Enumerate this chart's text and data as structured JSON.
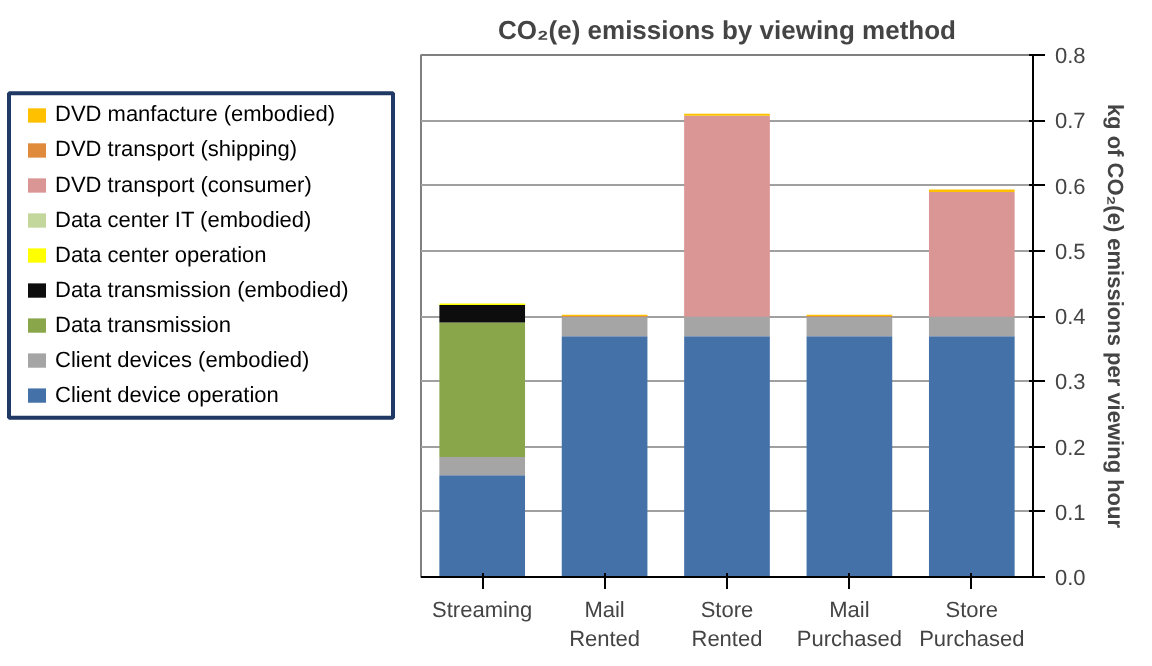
{
  "chart_data": {
    "type": "bar",
    "stacked": true,
    "title": "CO₂(e) emissions by viewing method",
    "ylabel": "kg of CO₂(e) emissions per viewing hour",
    "categories": [
      "Streaming",
      "Mail Rented",
      "Store Rented",
      "Mail Purchased",
      "Store Purchased"
    ],
    "series": [
      {
        "name": "Client device operation",
        "color": "#4472a8",
        "values": [
          0.156,
          0.369,
          0.369,
          0.369,
          0.369
        ]
      },
      {
        "name": "Client devices (embodied)",
        "color": "#a5a5a5",
        "values": [
          0.028,
          0.03,
          0.03,
          0.03,
          0.03
        ]
      },
      {
        "name": "Data transmission",
        "color": "#8aa64a",
        "values": [
          0.206,
          0,
          0,
          0,
          0
        ]
      },
      {
        "name": "Data transmission (embodied)",
        "color": "#0d0d0d",
        "values": [
          0.027,
          0,
          0,
          0,
          0
        ]
      },
      {
        "name": "Data center operation",
        "color": "#ffff00",
        "values": [
          0.002,
          0,
          0,
          0,
          0
        ]
      },
      {
        "name": "Data center IT (embodied)",
        "color": "#c3d69b",
        "values": [
          0,
          0,
          0,
          0,
          0
        ]
      },
      {
        "name": "DVD transport  (consumer)",
        "color": "#d99694",
        "values": [
          0,
          0,
          0.308,
          0,
          0.191
        ]
      },
      {
        "name": "DVD transport (shipping)",
        "color": "#e08a3c",
        "values": [
          0,
          0.001,
          0,
          0.001,
          0
        ]
      },
      {
        "name": "DVD manfacture (embodied)",
        "color": "#ffc000",
        "values": [
          0,
          0.002,
          0.003,
          0.002,
          0.004
        ]
      }
    ],
    "ylim": [
      0,
      0.8
    ],
    "yticks": [
      {
        "value": 0,
        "label": "0.0"
      },
      {
        "value": 0.1,
        "label": "0.1"
      },
      {
        "value": 0.2,
        "label": "0.2"
      },
      {
        "value": 0.3,
        "label": "0.3"
      },
      {
        "value": 0.4,
        "label": "0.4"
      },
      {
        "value": 0.5,
        "label": "0.5"
      },
      {
        "value": 0.6,
        "label": "0.6"
      },
      {
        "value": 0.7,
        "label": "0.7"
      },
      {
        "value": 0.8,
        "label": "0.8"
      }
    ],
    "grid": "y",
    "legend": "left"
  }
}
